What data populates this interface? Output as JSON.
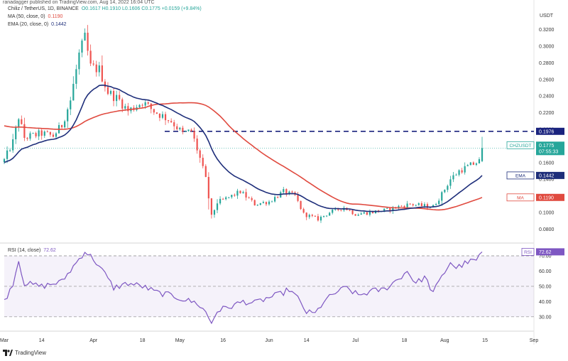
{
  "header": {
    "published": "ranadagger published on TradingView.com, Aug 14, 2022 16:04 UTC"
  },
  "legend": {
    "symbol": "Chiliz / TetherUS, 1D, BINANCE",
    "ohlc": "O0.1617 H0.1910 L0.1606 C0.1775 +0.0159 (+9.84%)",
    "ma_label": "MA (50, close, 0)",
    "ma_value": "0.1190",
    "ema_label": "EMA (20, close, 0)",
    "ema_value": "0.1442",
    "rsi_label": "RSI (14, close)",
    "rsi_value": "72.62"
  },
  "footer": {
    "brand": "TradingView"
  },
  "colors": {
    "up": "#26a69a",
    "down": "#ef5350",
    "ema": "#1e2e7a",
    "ma": "#e04a3f",
    "rsi": "#7e57c2",
    "resistance": "#1a237e",
    "axis_text": "#333333"
  },
  "chart_data": [
    {
      "type": "candlestick",
      "title": "Chiliz / TetherUS, 1D, BINANCE",
      "currency": "USDT",
      "x_range": [
        "2022-03-01",
        "2022-09-01"
      ],
      "ylim": [
        0.07,
        0.33
      ],
      "yticks": [
        "0.3200",
        "0.3000",
        "0.2800",
        "0.2600",
        "0.2400",
        "0.2200",
        "0.2000",
        "0.1800",
        "0.1600",
        "0.1400",
        "0.1200",
        "0.1000",
        "0.0800"
      ],
      "xticks": [
        "Mar",
        "14",
        "Apr",
        "18",
        "May",
        "16",
        "Jun",
        "14",
        "Jul",
        "18",
        "Aug",
        "15",
        "Sep"
      ],
      "price_labels": [
        {
          "label": "",
          "value": "0.1976"
        },
        {
          "label": "CHZUSDT",
          "value": "0.1775",
          "sub": "07:55:33"
        },
        {
          "label": "EMA",
          "value": "0.1442"
        },
        {
          "label": "MA",
          "value": "0.1190"
        }
      ],
      "resistance": 0.1976,
      "anchors": [
        [
          "2022-03-01",
          0.163
        ],
        [
          "2022-03-04",
          0.185
        ],
        [
          "2022-03-06",
          0.215
        ],
        [
          "2022-03-08",
          0.19
        ],
        [
          "2022-03-14",
          0.195
        ],
        [
          "2022-03-18",
          0.192
        ],
        [
          "2022-03-21",
          0.205
        ],
        [
          "2022-03-24",
          0.235
        ],
        [
          "2022-03-27",
          0.29
        ],
        [
          "2022-03-29",
          0.31
        ],
        [
          "2022-03-31",
          0.275
        ],
        [
          "2022-04-03",
          0.272
        ],
        [
          "2022-04-06",
          0.245
        ],
        [
          "2022-04-10",
          0.235
        ],
        [
          "2022-04-13",
          0.222
        ],
        [
          "2022-04-18",
          0.233
        ],
        [
          "2022-04-22",
          0.222
        ],
        [
          "2022-04-28",
          0.21
        ],
        [
          "2022-05-02",
          0.195
        ],
        [
          "2022-05-05",
          0.198
        ],
        [
          "2022-05-08",
          0.165
        ],
        [
          "2022-05-10",
          0.14
        ],
        [
          "2022-05-12",
          0.095
        ],
        [
          "2022-05-14",
          0.112
        ],
        [
          "2022-05-18",
          0.118
        ],
        [
          "2022-05-22",
          0.125
        ],
        [
          "2022-05-27",
          0.11
        ],
        [
          "2022-06-01",
          0.113
        ],
        [
          "2022-06-06",
          0.125
        ],
        [
          "2022-06-10",
          0.12
        ],
        [
          "2022-06-13",
          0.098
        ],
        [
          "2022-06-18",
          0.092
        ],
        [
          "2022-06-22",
          0.1
        ],
        [
          "2022-06-27",
          0.106
        ],
        [
          "2022-07-01",
          0.098
        ],
        [
          "2022-07-06",
          0.1
        ],
        [
          "2022-07-12",
          0.103
        ],
        [
          "2022-07-16",
          0.107
        ],
        [
          "2022-07-20",
          0.11
        ],
        [
          "2022-07-24",
          0.108
        ],
        [
          "2022-07-28",
          0.107
        ],
        [
          "2022-07-31",
          0.122
        ],
        [
          "2022-08-03",
          0.14
        ],
        [
          "2022-08-06",
          0.15
        ],
        [
          "2022-08-09",
          0.155
        ],
        [
          "2022-08-12",
          0.16
        ],
        [
          "2022-08-13",
          0.1617
        ],
        [
          "2022-08-14",
          0.1775
        ]
      ],
      "last_candle": {
        "date": "2022-08-14",
        "open": 0.1617,
        "high": 0.191,
        "low": 0.1606,
        "close": 0.1775
      }
    },
    {
      "type": "line",
      "title": "RSI (14, close)",
      "ylim": [
        22,
        77
      ],
      "yticks": [
        "70.00",
        "60.00",
        "50.00",
        "40.00",
        "30.00"
      ],
      "levels": [
        70,
        50,
        30
      ],
      "anchors": [
        [
          "2022-03-01",
          40
        ],
        [
          "2022-03-04",
          52
        ],
        [
          "2022-03-06",
          67
        ],
        [
          "2022-03-08",
          52
        ],
        [
          "2022-03-14",
          50
        ],
        [
          "2022-03-21",
          53
        ],
        [
          "2022-03-27",
          68
        ],
        [
          "2022-03-29",
          73
        ],
        [
          "2022-04-01",
          68
        ],
        [
          "2022-04-05",
          58
        ],
        [
          "2022-04-08",
          49
        ],
        [
          "2022-04-13",
          52
        ],
        [
          "2022-04-18",
          50
        ],
        [
          "2022-04-23",
          46
        ],
        [
          "2022-04-28",
          44
        ],
        [
          "2022-05-03",
          41
        ],
        [
          "2022-05-07",
          39
        ],
        [
          "2022-05-10",
          33
        ],
        [
          "2022-05-12",
          26
        ],
        [
          "2022-05-14",
          34
        ],
        [
          "2022-05-19",
          37
        ],
        [
          "2022-05-23",
          40
        ],
        [
          "2022-05-27",
          39
        ],
        [
          "2022-05-31",
          42
        ],
        [
          "2022-06-05",
          45
        ],
        [
          "2022-06-08",
          48
        ],
        [
          "2022-06-11",
          42
        ],
        [
          "2022-06-14",
          33
        ],
        [
          "2022-06-17",
          32
        ],
        [
          "2022-06-20",
          40
        ],
        [
          "2022-06-25",
          47
        ],
        [
          "2022-06-28",
          49
        ],
        [
          "2022-07-02",
          44
        ],
        [
          "2022-07-07",
          47
        ],
        [
          "2022-07-11",
          48
        ],
        [
          "2022-07-16",
          55
        ],
        [
          "2022-07-19",
          60
        ],
        [
          "2022-07-22",
          52
        ],
        [
          "2022-07-25",
          56
        ],
        [
          "2022-07-28",
          46
        ],
        [
          "2022-07-31",
          56
        ],
        [
          "2022-08-03",
          66
        ],
        [
          "2022-08-05",
          62
        ],
        [
          "2022-08-09",
          66
        ],
        [
          "2022-08-12",
          67
        ],
        [
          "2022-08-14",
          72.62
        ]
      ],
      "last_label": "72.62"
    }
  ]
}
